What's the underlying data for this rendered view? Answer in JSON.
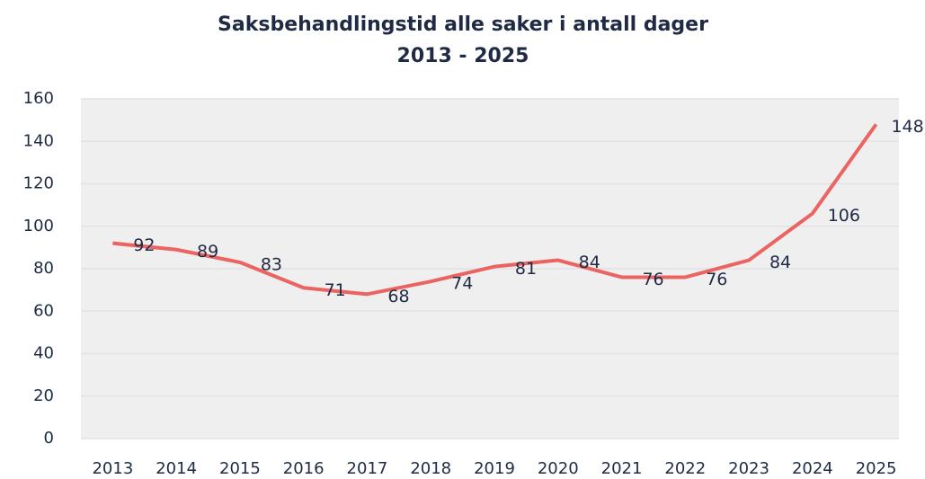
{
  "chart_data": {
    "type": "line",
    "title": "Saksbehandlingstid alle saker i antall dager",
    "subtitle": "2013 - 2025",
    "categories": [
      "2013",
      "2014",
      "2015",
      "2016",
      "2017",
      "2018",
      "2019",
      "2020",
      "2021",
      "2022",
      "2023",
      "2024",
      "2025"
    ],
    "series": [
      {
        "name": "Saksbehandlingstid",
        "color": "#ec6461",
        "values": [
          92,
          89,
          83,
          71,
          68,
          74,
          81,
          84,
          76,
          76,
          84,
          106,
          148
        ]
      }
    ],
    "ylim": [
      0,
      160
    ],
    "yticks": [
      0,
      20,
      40,
      60,
      80,
      100,
      120,
      140,
      160
    ],
    "grid": true
  }
}
